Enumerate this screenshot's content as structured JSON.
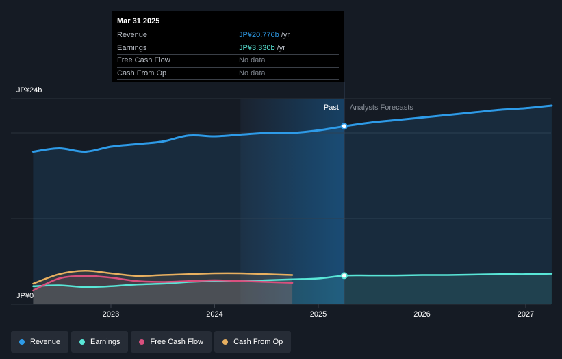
{
  "chart_data": {
    "type": "area",
    "y_axis": {
      "unit": "JP¥ billions",
      "ylim": [
        0,
        24
      ],
      "labels": [
        {
          "value": 24,
          "text": "JP¥24b"
        },
        {
          "value": 0,
          "text": "JP¥0"
        }
      ],
      "gridlines": [
        0,
        10,
        20,
        24
      ]
    },
    "x_axis": {
      "range": [
        2022.22,
        2027.25
      ],
      "ticks": [
        {
          "value": 2023.0,
          "label": "2023"
        },
        {
          "value": 2024.0,
          "label": "2024"
        },
        {
          "value": 2025.0,
          "label": "2025"
        },
        {
          "value": 2026.0,
          "label": "2026"
        },
        {
          "value": 2027.0,
          "label": "2027"
        }
      ]
    },
    "past_region_start": 2024.25,
    "divider": {
      "x": 2025.25,
      "past_label": "Past",
      "forecast_label": "Analysts Forecasts"
    },
    "series": [
      {
        "name": "Revenue",
        "color": "#2e9be8",
        "area": true,
        "points": [
          [
            2022.25,
            17.8
          ],
          [
            2022.5,
            18.2
          ],
          [
            2022.75,
            17.8
          ],
          [
            2023.0,
            18.4
          ],
          [
            2023.25,
            18.7
          ],
          [
            2023.5,
            19.0
          ],
          [
            2023.75,
            19.7
          ],
          [
            2024.0,
            19.6
          ],
          [
            2024.25,
            19.8
          ],
          [
            2024.5,
            20.0
          ],
          [
            2024.75,
            20.0
          ],
          [
            2025.0,
            20.3
          ],
          [
            2025.25,
            20.776
          ],
          [
            2025.5,
            21.2
          ],
          [
            2025.75,
            21.5
          ],
          [
            2026.0,
            21.8
          ],
          [
            2026.25,
            22.1
          ],
          [
            2026.5,
            22.4
          ],
          [
            2026.75,
            22.7
          ],
          [
            2027.0,
            22.9
          ],
          [
            2027.25,
            23.2
          ]
        ]
      },
      {
        "name": "Earnings",
        "color": "#59e6d7",
        "area": true,
        "points": [
          [
            2022.25,
            2.1
          ],
          [
            2022.5,
            2.2
          ],
          [
            2022.75,
            2.0
          ],
          [
            2023.0,
            2.1
          ],
          [
            2023.25,
            2.3
          ],
          [
            2023.5,
            2.4
          ],
          [
            2023.75,
            2.6
          ],
          [
            2024.0,
            2.7
          ],
          [
            2024.25,
            2.7
          ],
          [
            2024.5,
            2.8
          ],
          [
            2024.75,
            2.9
          ],
          [
            2025.0,
            3.0
          ],
          [
            2025.25,
            3.33
          ],
          [
            2025.5,
            3.35
          ],
          [
            2025.75,
            3.35
          ],
          [
            2026.0,
            3.4
          ],
          [
            2026.25,
            3.4
          ],
          [
            2026.5,
            3.45
          ],
          [
            2026.75,
            3.5
          ],
          [
            2027.0,
            3.5
          ],
          [
            2027.25,
            3.55
          ]
        ]
      },
      {
        "name": "Free Cash Flow",
        "color": "#d9507e",
        "area": true,
        "points": [
          [
            2022.25,
            1.6
          ],
          [
            2022.5,
            3.0
          ],
          [
            2022.75,
            3.3
          ],
          [
            2023.0,
            3.1
          ],
          [
            2023.25,
            2.7
          ],
          [
            2023.5,
            2.6
          ],
          [
            2023.75,
            2.7
          ],
          [
            2024.0,
            2.8
          ],
          [
            2024.25,
            2.7
          ],
          [
            2024.5,
            2.6
          ],
          [
            2024.75,
            2.5
          ]
        ]
      },
      {
        "name": "Cash From Op",
        "color": "#e8b060",
        "area": true,
        "points": [
          [
            2022.25,
            2.4
          ],
          [
            2022.5,
            3.5
          ],
          [
            2022.75,
            3.9
          ],
          [
            2023.0,
            3.6
          ],
          [
            2023.25,
            3.3
          ],
          [
            2023.5,
            3.4
          ],
          [
            2023.75,
            3.5
          ],
          [
            2024.0,
            3.6
          ],
          [
            2024.25,
            3.6
          ],
          [
            2024.5,
            3.5
          ],
          [
            2024.75,
            3.4
          ]
        ]
      }
    ]
  },
  "tooltip": {
    "date": "Mar 31 2025",
    "rows": [
      {
        "name": "Revenue",
        "value": "JP¥20.776b",
        "unit": "/yr"
      },
      {
        "name": "Earnings",
        "value": "JP¥3.330b",
        "unit": "/yr"
      },
      {
        "name": "Free Cash Flow",
        "value": "No data",
        "unit": ""
      },
      {
        "name": "Cash From Op",
        "value": "No data",
        "unit": ""
      }
    ]
  },
  "legend": [
    {
      "label": "Revenue",
      "color": "#2e9be8"
    },
    {
      "label": "Earnings",
      "color": "#59e6d7"
    },
    {
      "label": "Free Cash Flow",
      "color": "#d9507e"
    },
    {
      "label": "Cash From Op",
      "color": "#e8b060"
    }
  ]
}
